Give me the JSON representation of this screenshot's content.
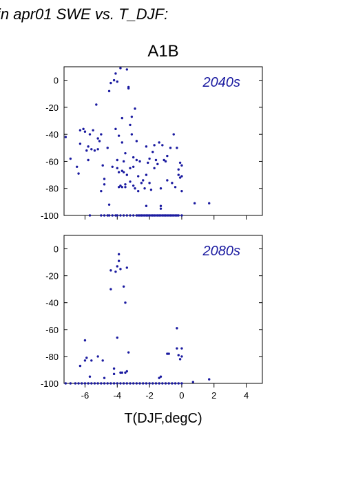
{
  "colors": {
    "point": "#1a1aa0",
    "label": "#1a1aa0",
    "axis": "#000000"
  },
  "figure": {
    "title": "in apr01 SWE vs. T_DJF:",
    "subtitle": "A1B",
    "xlabel": "T(DJF,degC)"
  },
  "chart_data": [
    {
      "type": "scatter",
      "label": "2040s",
      "xlim": [
        -7.3,
        5.0
      ],
      "ylim": [
        -100,
        10
      ],
      "xticks": [
        -6,
        -4,
        -2,
        0,
        2,
        4
      ],
      "yticks": [
        0,
        -20,
        -40,
        -60,
        -80,
        -100
      ],
      "ytick_labels": [
        "0",
        "-20",
        "-40",
        "-60",
        "-80",
        "-100"
      ],
      "xtick_labels": [],
      "points": [
        [
          -7.2,
          -42
        ],
        [
          -6.9,
          -58
        ],
        [
          -6.5,
          -64
        ],
        [
          -6.4,
          -69
        ],
        [
          -6.3,
          -37
        ],
        [
          -6.3,
          -47
        ],
        [
          -6.1,
          -36
        ],
        [
          -6.0,
          -38
        ],
        [
          -5.9,
          -52
        ],
        [
          -5.8,
          -49
        ],
        [
          -5.8,
          -59
        ],
        [
          -5.7,
          -40
        ],
        [
          -5.6,
          -51
        ],
        [
          -5.5,
          -37
        ],
        [
          -5.4,
          -52
        ],
        [
          -5.3,
          -18
        ],
        [
          -5.2,
          -43
        ],
        [
          -5.2,
          -51
        ],
        [
          -5.1,
          -45
        ],
        [
          -5.0,
          -40
        ],
        [
          -5.0,
          -82
        ],
        [
          -4.9,
          -63
        ],
        [
          -4.8,
          -73
        ],
        [
          -4.8,
          -77
        ],
        [
          -4.6,
          -50
        ],
        [
          -4.5,
          -8
        ],
        [
          -4.5,
          -92
        ],
        [
          -4.4,
          -2
        ],
        [
          -4.3,
          -64
        ],
        [
          -4.2,
          0
        ],
        [
          -4.1,
          5
        ],
        [
          -4.1,
          -36
        ],
        [
          -4.0,
          -59
        ],
        [
          -4.0,
          -65
        ],
        [
          -4.0,
          -1
        ],
        [
          -3.9,
          -41
        ],
        [
          -3.9,
          -68
        ],
        [
          -3.9,
          -79
        ],
        [
          -3.8,
          9
        ],
        [
          -3.8,
          -78
        ],
        [
          -3.7,
          -28
        ],
        [
          -3.7,
          -46
        ],
        [
          -3.7,
          -67
        ],
        [
          -3.7,
          -79
        ],
        [
          -3.6,
          -60
        ],
        [
          -3.6,
          -68
        ],
        [
          -3.5,
          -77
        ],
        [
          -3.5,
          -54
        ],
        [
          -3.5,
          -79
        ],
        [
          -3.4,
          8
        ],
        [
          -3.4,
          -70
        ],
        [
          -3.3,
          -5
        ],
        [
          -3.3,
          -6
        ],
        [
          -3.2,
          -33
        ],
        [
          -3.2,
          -65
        ],
        [
          -3.2,
          -75
        ],
        [
          -3.1,
          -27
        ],
        [
          -3.1,
          -40
        ],
        [
          -3.0,
          -57
        ],
        [
          -3.0,
          -64
        ],
        [
          -3.0,
          -78
        ],
        [
          -2.9,
          -80
        ],
        [
          -2.9,
          -21
        ],
        [
          -2.8,
          -45
        ],
        [
          -2.8,
          -59
        ],
        [
          -2.7,
          -71
        ],
        [
          -2.7,
          -82
        ],
        [
          -2.6,
          -60
        ],
        [
          -2.5,
          -76
        ],
        [
          -2.4,
          -74
        ],
        [
          -2.3,
          -80
        ],
        [
          -2.2,
          -93
        ],
        [
          -2.2,
          -70
        ],
        [
          -2.2,
          -49
        ],
        [
          -2.1,
          -61
        ],
        [
          -2.0,
          -58
        ],
        [
          -2.0,
          -76
        ],
        [
          -1.9,
          -81
        ],
        [
          -1.8,
          -53
        ],
        [
          -1.7,
          -48
        ],
        [
          -1.7,
          -65
        ],
        [
          -1.6,
          -59
        ],
        [
          -1.5,
          -62
        ],
        [
          -1.4,
          -46
        ],
        [
          -1.3,
          -80
        ],
        [
          -1.3,
          -93
        ],
        [
          -1.3,
          -95
        ],
        [
          -1.2,
          -48
        ],
        [
          -1.1,
          -59
        ],
        [
          -1.0,
          -60
        ],
        [
          -0.9,
          -56
        ],
        [
          -0.9,
          -74
        ],
        [
          -0.7,
          -50
        ],
        [
          -0.6,
          -76
        ],
        [
          -0.5,
          -40
        ],
        [
          -0.4,
          -79
        ],
        [
          -0.3,
          -50
        ],
        [
          -0.2,
          -66
        ],
        [
          -0.2,
          -70
        ],
        [
          -0.1,
          -61
        ],
        [
          -0.1,
          -72
        ],
        [
          0.0,
          -63
        ],
        [
          0.0,
          -71
        ],
        [
          0.0,
          -82
        ],
        [
          0.8,
          -91
        ],
        [
          1.7,
          -91
        ],
        [
          -5.7,
          -100
        ],
        [
          -5.0,
          -100
        ],
        [
          -4.8,
          -100
        ],
        [
          -4.6,
          -100
        ],
        [
          -4.5,
          -100
        ],
        [
          -4.3,
          -100
        ],
        [
          -4.1,
          -100
        ],
        [
          -4.0,
          -100
        ],
        [
          -3.8,
          -100
        ],
        [
          -3.6,
          -100
        ],
        [
          -3.4,
          -100
        ],
        [
          -3.2,
          -100
        ],
        [
          -3.0,
          -100
        ],
        [
          -2.8,
          -100
        ],
        [
          -2.7,
          -100
        ],
        [
          -2.6,
          -100
        ],
        [
          -2.5,
          -100
        ],
        [
          -2.4,
          -100
        ],
        [
          -2.3,
          -100
        ],
        [
          -2.2,
          -100
        ],
        [
          -2.1,
          -100
        ],
        [
          -2.0,
          -100
        ],
        [
          -1.9,
          -100
        ],
        [
          -1.8,
          -100
        ],
        [
          -1.7,
          -100
        ],
        [
          -1.6,
          -100
        ],
        [
          -1.5,
          -100
        ],
        [
          -1.4,
          -100
        ],
        [
          -1.3,
          -100
        ],
        [
          -1.2,
          -100
        ],
        [
          -1.1,
          -100
        ],
        [
          -1.0,
          -100
        ],
        [
          -0.9,
          -100
        ],
        [
          -0.8,
          -100
        ],
        [
          -0.7,
          -100
        ],
        [
          -0.6,
          -100
        ],
        [
          -0.5,
          -100
        ],
        [
          -0.4,
          -100
        ],
        [
          -0.3,
          -100
        ],
        [
          -0.2,
          -100
        ],
        [
          0.0,
          -100
        ]
      ]
    },
    {
      "type": "scatter",
      "label": "2080s",
      "xlim": [
        -7.3,
        5.0
      ],
      "ylim": [
        -100,
        10
      ],
      "xticks": [
        -6,
        -4,
        -2,
        0,
        2,
        4
      ],
      "yticks": [
        0,
        -20,
        -40,
        -60,
        -80,
        -100
      ],
      "ytick_labels": [
        "0",
        "-20",
        "-40",
        "-60",
        "-80",
        "-100"
      ],
      "xtick_labels": [
        "-6",
        "-4",
        "-2",
        "0",
        "2",
        "4"
      ],
      "points": [
        [
          -6.3,
          -87
        ],
        [
          -6.0,
          -68
        ],
        [
          -6.0,
          -83
        ],
        [
          -5.9,
          -81
        ],
        [
          -5.7,
          -95
        ],
        [
          -5.6,
          -83
        ],
        [
          -5.2,
          -80
        ],
        [
          -4.9,
          -83
        ],
        [
          -4.8,
          -96
        ],
        [
          -4.4,
          -30
        ],
        [
          -4.4,
          -16
        ],
        [
          -4.2,
          -89
        ],
        [
          -4.2,
          -93
        ],
        [
          -4.1,
          -17
        ],
        [
          -4.0,
          -66
        ],
        [
          -4.0,
          -13
        ],
        [
          -3.9,
          -9
        ],
        [
          -3.9,
          -4
        ],
        [
          -3.8,
          -92
        ],
        [
          -3.8,
          -15
        ],
        [
          -3.7,
          -92
        ],
        [
          -3.6,
          -28
        ],
        [
          -3.5,
          -40
        ],
        [
          -3.5,
          -92
        ],
        [
          -3.4,
          -91
        ],
        [
          -3.4,
          -14
        ],
        [
          -3.3,
          -77
        ],
        [
          -1.4,
          -96
        ],
        [
          -1.3,
          -95
        ],
        [
          -0.9,
          -78
        ],
        [
          -0.8,
          -78
        ],
        [
          -0.3,
          -59
        ],
        [
          -0.3,
          -74
        ],
        [
          -0.2,
          -79
        ],
        [
          -0.1,
          -82
        ],
        [
          0.0,
          -74
        ],
        [
          0.0,
          -80
        ],
        [
          0.7,
          -99
        ],
        [
          1.7,
          -97
        ],
        [
          -7.2,
          -100
        ],
        [
          -6.9,
          -100
        ],
        [
          -6.6,
          -100
        ],
        [
          -6.4,
          -100
        ],
        [
          -6.2,
          -100
        ],
        [
          -6.0,
          -100
        ],
        [
          -5.8,
          -100
        ],
        [
          -5.6,
          -100
        ],
        [
          -5.4,
          -100
        ],
        [
          -5.2,
          -100
        ],
        [
          -5.0,
          -100
        ],
        [
          -4.8,
          -100
        ],
        [
          -4.6,
          -100
        ],
        [
          -4.4,
          -100
        ],
        [
          -4.2,
          -100
        ],
        [
          -4.0,
          -100
        ],
        [
          -3.8,
          -100
        ],
        [
          -3.6,
          -100
        ],
        [
          -3.4,
          -100
        ],
        [
          -3.2,
          -100
        ],
        [
          -3.0,
          -100
        ],
        [
          -2.8,
          -100
        ],
        [
          -2.6,
          -100
        ],
        [
          -2.4,
          -100
        ],
        [
          -2.2,
          -100
        ],
        [
          -2.0,
          -100
        ],
        [
          -1.8,
          -100
        ],
        [
          -1.6,
          -100
        ],
        [
          -1.4,
          -100
        ],
        [
          -1.2,
          -100
        ],
        [
          -1.0,
          -100
        ],
        [
          -0.8,
          -100
        ],
        [
          -0.6,
          -100
        ],
        [
          -0.4,
          -100
        ],
        [
          -0.2,
          -100
        ],
        [
          0.0,
          -100
        ]
      ]
    }
  ]
}
